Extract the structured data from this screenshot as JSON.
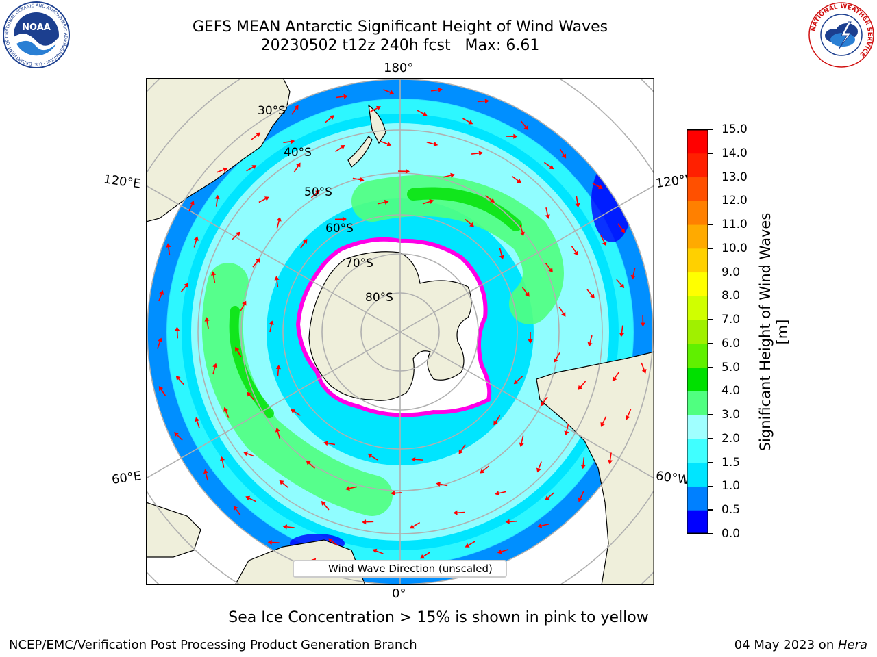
{
  "header": {
    "title_line1": "GEFS MEAN Antarctic Significant Height of Wind Waves",
    "title_line2": "20230502 t12z 240h fcst   Max: 6.61"
  },
  "logos": {
    "left": {
      "text": "NOAA",
      "ring_text": "NATIONAL OCEANIC AND ATMOSPHERIC ADMINISTRATION · U.S. DEPARTMENT OF COMMERCE"
    },
    "right": {
      "ring_text": "NATIONAL WEATHER SERVICE"
    }
  },
  "map": {
    "longitude_labels": {
      "top": "180°",
      "bottom": "0°",
      "upper_left": "120°E",
      "lower_left": "60°E",
      "upper_right": "120°W",
      "lower_right": "60°W"
    },
    "latitude_labels": [
      "30°S",
      "40°S",
      "50°S",
      "60°S",
      "70°S",
      "80°S"
    ],
    "legend_label": "Wind Wave Direction (unscaled)"
  },
  "colorbar": {
    "label": "Significant Height of Wind Waves [m]",
    "ticks": [
      "15.0",
      "14.0",
      "13.0",
      "12.0",
      "11.0",
      "10.0",
      "9.0",
      "8.0",
      "7.0",
      "6.0",
      "5.0",
      "4.0",
      "3.0",
      "2.0",
      "1.5",
      "1.0",
      "0.5",
      "0.0"
    ],
    "colors": [
      "#0000ff",
      "#0080ff",
      "#00e5ff",
      "#40ffff",
      "#a0ffff",
      "#50ff80",
      "#00e000",
      "#60f000",
      "#a0f000",
      "#d0ff00",
      "#ffff00",
      "#ffd000",
      "#ffaa00",
      "#ff8000",
      "#ff5000",
      "#ff2000",
      "#ff0000"
    ]
  },
  "notes": {
    "sea_ice": "Sea Ice Concentration > 15% is shown in pink to yellow"
  },
  "footer": {
    "left": "NCEP/EMC/Verification Post Processing Product Generation Branch",
    "right_date": "04 May 2023 on ",
    "right_machine": "Hera"
  }
}
